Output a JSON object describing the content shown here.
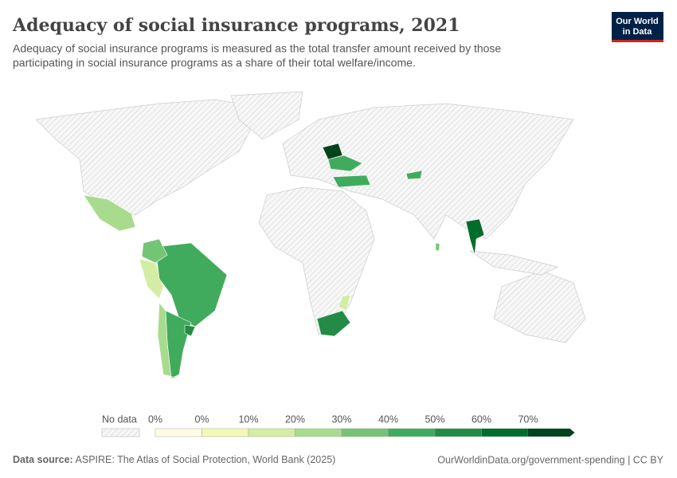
{
  "header": {
    "title": "Adequacy of social insurance programs, 2021",
    "subtitle": [
      "Adequacy of social insurance programs is measured as the total transfer amount received by those",
      "participating in social insurance programs as a share of their total welfare/income."
    ],
    "logo": [
      "Our World",
      "in Data"
    ]
  },
  "legend": {
    "no_data_label": "No data",
    "labels": [
      "0%",
      "0%",
      "10%",
      "20%",
      "30%",
      "40%",
      "50%",
      "60%",
      "70%"
    ],
    "colors": [
      "#fffde3",
      "#f2f9b3",
      "#d3eda3",
      "#a9db8e",
      "#74c476",
      "#41ab5d",
      "#238b45",
      "#006d2c",
      "#00441b"
    ]
  },
  "footer": {
    "source_label": "Data source:",
    "source": "ASPIRE: The Atlas of Social Protection, World Bank (2025)",
    "url": "OurWorldinData.org/government-spending | CC BY"
  }
}
